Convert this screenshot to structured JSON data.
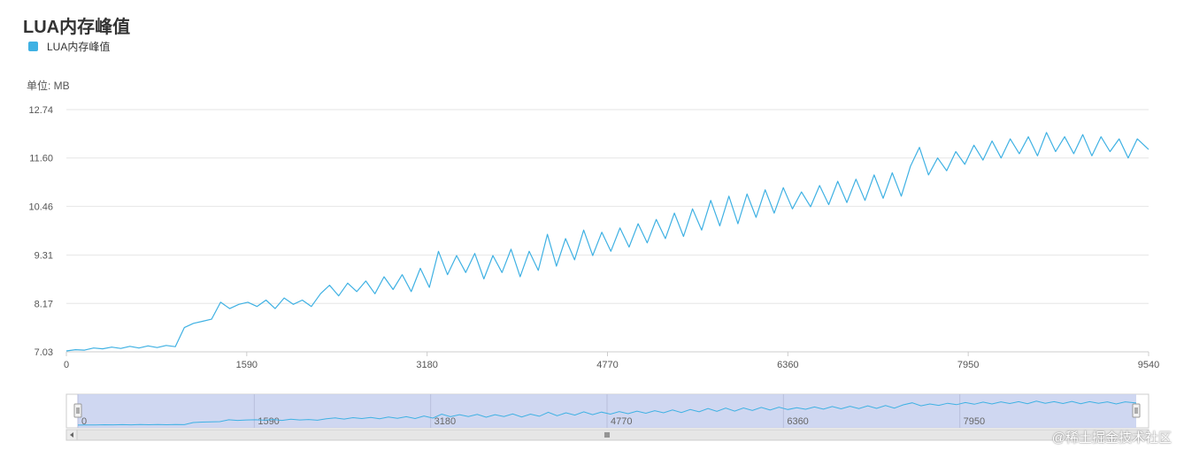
{
  "colors": {
    "series": "#3fb1e3",
    "grid": "#e6e6e6",
    "axis": "#cccccc",
    "navigator_fill": "#c7d0ee",
    "navigator_bg": "#ffffff",
    "scrollbar": "#e6e6e6"
  },
  "unit_label": "单位: MB",
  "watermark": "@稀土掘金技术社区",
  "chart_data": {
    "type": "line",
    "title": "LUA内存峰值",
    "xlabel": "",
    "ylabel": "单位: MB",
    "legend": [
      "LUA内存峰值"
    ],
    "legend_position": "top-left",
    "xlim": [
      0,
      9540
    ],
    "ylim": [
      7.03,
      12.74
    ],
    "xticks": [
      "0",
      "1590",
      "3180",
      "4770",
      "6360",
      "7950",
      "9540"
    ],
    "yticks": [
      "7.03",
      "8.17",
      "9.31",
      "10.46",
      "11.60",
      "12.74"
    ],
    "navigator_ticks": [
      "0",
      "1590",
      "3180",
      "4770",
      "6360",
      "7950"
    ],
    "series": [
      {
        "name": "LUA内存峰值",
        "x": [
          0,
          80,
          160,
          240,
          320,
          400,
          480,
          560,
          640,
          720,
          800,
          880,
          960,
          1040,
          1120,
          1200,
          1280,
          1360,
          1440,
          1520,
          1600,
          1680,
          1760,
          1840,
          1920,
          2000,
          2080,
          2160,
          2240,
          2320,
          2400,
          2480,
          2560,
          2640,
          2720,
          2800,
          2880,
          2960,
          3040,
          3120,
          3200,
          3280,
          3360,
          3440,
          3520,
          3600,
          3680,
          3760,
          3840,
          3920,
          4000,
          4080,
          4160,
          4240,
          4320,
          4400,
          4480,
          4560,
          4640,
          4720,
          4800,
          4880,
          4960,
          5040,
          5120,
          5200,
          5280,
          5360,
          5440,
          5520,
          5600,
          5680,
          5760,
          5840,
          5920,
          6000,
          6080,
          6160,
          6240,
          6320,
          6400,
          6480,
          6560,
          6640,
          6720,
          6800,
          6880,
          6960,
          7040,
          7120,
          7200,
          7280,
          7360,
          7440,
          7520,
          7600,
          7680,
          7760,
          7840,
          7920,
          8000,
          8080,
          8160,
          8240,
          8320,
          8400,
          8480,
          8560,
          8640,
          8720,
          8800,
          8880,
          8960,
          9040,
          9120,
          9200,
          9280,
          9360,
          9440,
          9540
        ],
        "values": [
          7.05,
          7.08,
          7.07,
          7.12,
          7.1,
          7.14,
          7.11,
          7.16,
          7.12,
          7.17,
          7.13,
          7.18,
          7.15,
          7.6,
          7.7,
          7.75,
          7.8,
          8.2,
          8.05,
          8.15,
          8.2,
          8.1,
          8.25,
          8.05,
          8.3,
          8.15,
          8.25,
          8.1,
          8.4,
          8.6,
          8.35,
          8.65,
          8.45,
          8.7,
          8.4,
          8.8,
          8.5,
          8.85,
          8.45,
          9.0,
          8.55,
          9.4,
          8.85,
          9.3,
          8.9,
          9.35,
          8.75,
          9.3,
          8.9,
          9.45,
          8.8,
          9.4,
          8.95,
          9.8,
          9.05,
          9.7,
          9.2,
          9.9,
          9.3,
          9.85,
          9.4,
          9.95,
          9.5,
          10.05,
          9.6,
          10.15,
          9.7,
          10.3,
          9.75,
          10.4,
          9.9,
          10.6,
          10.0,
          10.7,
          10.05,
          10.75,
          10.2,
          10.85,
          10.3,
          10.9,
          10.4,
          10.8,
          10.45,
          10.95,
          10.5,
          11.05,
          10.55,
          11.1,
          10.6,
          11.2,
          10.65,
          11.25,
          10.7,
          11.4,
          11.85,
          11.2,
          11.6,
          11.3,
          11.75,
          11.45,
          11.9,
          11.55,
          12.0,
          11.6,
          12.05,
          11.7,
          12.1,
          11.65,
          12.2,
          11.75,
          12.1,
          11.7,
          12.15,
          11.65,
          12.1,
          11.75,
          12.05,
          11.6,
          12.05,
          11.8
        ]
      }
    ]
  }
}
